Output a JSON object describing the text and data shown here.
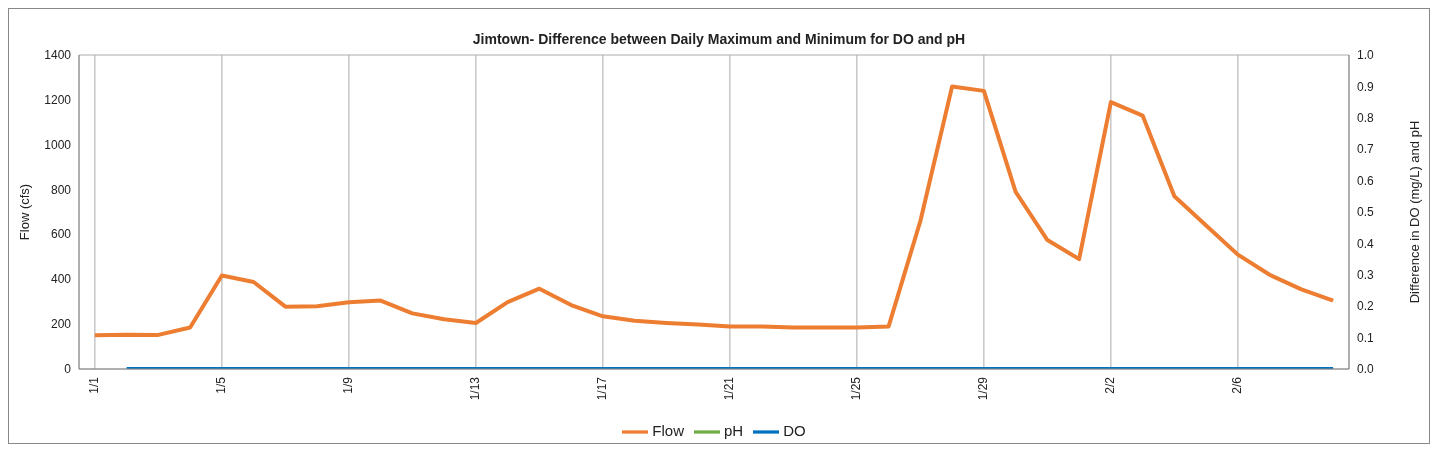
{
  "chart_data": {
    "type": "line",
    "title": "Jimtown- Difference between Daily Maximum and Minimum for DO and pH",
    "ylabel": "Flow (cfs)",
    "y2label": "Difference in DO (mg/L) and pH",
    "categories": [
      "1/1",
      null,
      null,
      null,
      "1/5",
      null,
      null,
      null,
      "1/9",
      null,
      null,
      null,
      "1/13",
      null,
      null,
      null,
      "1/17",
      null,
      null,
      null,
      "1/21",
      null,
      null,
      null,
      "1/25",
      null,
      null,
      null,
      "1/29",
      null,
      null,
      null,
      "2/2",
      null,
      null,
      null,
      "2/6",
      null,
      null,
      null
    ],
    "series": [
      {
        "name": "Flow",
        "color": "#ed7d31",
        "values": [
          150,
          153,
          152,
          185,
          417,
          388,
          278,
          280,
          298,
          305,
          248,
          222,
          205,
          298,
          358,
          285,
          235,
          215,
          205,
          198,
          190,
          190,
          185,
          185,
          185,
          190,
          660,
          1260,
          1240,
          790,
          575,
          490,
          1190,
          1130,
          770,
          640,
          510,
          420,
          355,
          305
        ]
      },
      {
        "name": "pH",
        "color": "#70ad47",
        "values": [
          null,
          null,
          null,
          null,
          null,
          null,
          null,
          null,
          null,
          null,
          null,
          null,
          null,
          null,
          null,
          null,
          null,
          null,
          null,
          null,
          null,
          null,
          null,
          null,
          null,
          null,
          null,
          null,
          null,
          null,
          null,
          null,
          null,
          null,
          null,
          null,
          null,
          null,
          null,
          null
        ]
      },
      {
        "name": "DO",
        "color": "#0070c0",
        "values": [
          null,
          0,
          0,
          0,
          0,
          0,
          0,
          0,
          0,
          0,
          0,
          0,
          0,
          0,
          0,
          0,
          0,
          0,
          0,
          0,
          0,
          0,
          0,
          0,
          0,
          0,
          0,
          0,
          0,
          0,
          0,
          0,
          0,
          0,
          0,
          0,
          0,
          0,
          0,
          0
        ]
      }
    ],
    "ylim": [
      0,
      1400
    ],
    "yticks": [
      0,
      200,
      400,
      600,
      800,
      1000,
      1200,
      1400
    ],
    "y2lim": [
      0,
      1
    ],
    "y2ticks": [
      {
        "value": 0,
        "label": "0.0"
      },
      {
        "value": 0.1,
        "label": "0.1"
      },
      {
        "value": 0.2,
        "label": "0.2"
      },
      {
        "value": 0.3,
        "label": "0.3"
      },
      {
        "value": 0.4,
        "label": "0.4"
      },
      {
        "value": 0.5,
        "label": "0.5"
      },
      {
        "value": 0.6,
        "label": "0.6"
      },
      {
        "value": 0.7,
        "label": "0.7"
      },
      {
        "value": 0.8,
        "label": "0.8"
      },
      {
        "value": 0.9,
        "label": "0.9"
      },
      {
        "value": 1,
        "label": "1.0"
      }
    ],
    "grid": true,
    "legend": "bottom",
    "marker": "none",
    "line_style": "solid"
  }
}
